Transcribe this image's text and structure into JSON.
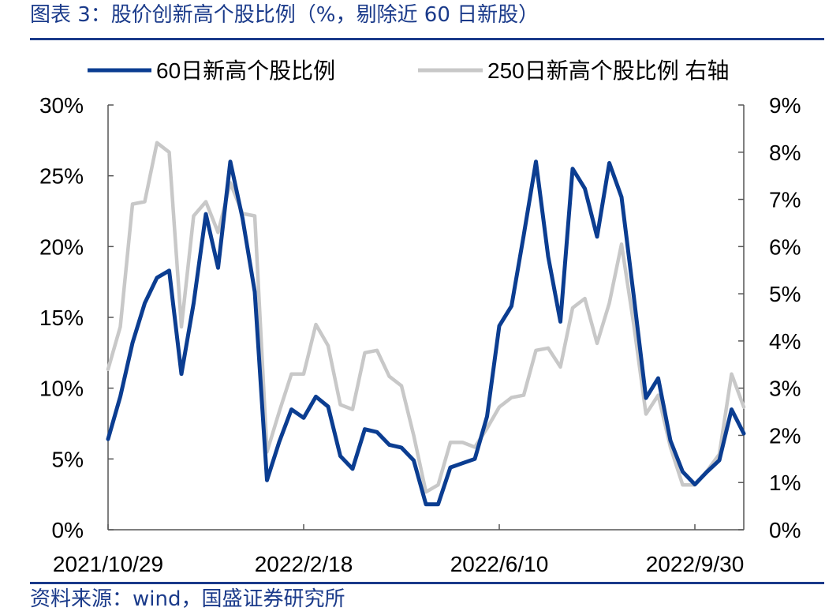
{
  "header": {
    "title": "图表 3：股价创新高个股比例（%，剔除近 60 日新股）"
  },
  "footer": {
    "source": "资料来源：wind，国盛证券研究所"
  },
  "colors": {
    "series_60d": "#0b3d91",
    "series_250d": "#c8c8c8",
    "frame": "#1a3a8a"
  },
  "chart_data": {
    "type": "line",
    "title": "",
    "xlabel": "",
    "ylabel": "",
    "x_tick_labels": [
      "2021/10/29",
      "2022/2/18",
      "2022/6/10",
      "2022/9/30"
    ],
    "x_tick_index": [
      0,
      16,
      32,
      48
    ],
    "y_left": {
      "lim": [
        0,
        30
      ],
      "ticks": [
        0,
        5,
        10,
        15,
        20,
        25,
        30
      ],
      "tick_labels": [
        "0%",
        "5%",
        "10%",
        "15%",
        "20%",
        "25%",
        "30%"
      ]
    },
    "y_right": {
      "lim": [
        0,
        9
      ],
      "ticks": [
        0,
        1,
        2,
        3,
        4,
        5,
        6,
        7,
        8,
        9
      ],
      "tick_labels": [
        "0%",
        "1%",
        "2%",
        "3%",
        "4%",
        "5%",
        "6%",
        "7%",
        "8%",
        "9%"
      ]
    },
    "legend": {
      "position": "top"
    },
    "grid": false,
    "series": [
      {
        "name": "60日新高个股比例",
        "axis": "left",
        "values": [
          6.4,
          9.4,
          13.2,
          16.0,
          17.8,
          18.3,
          11.0,
          16.0,
          22.3,
          18.5,
          26.0,
          22.0,
          16.8,
          3.5,
          6.2,
          8.5,
          7.9,
          9.4,
          8.7,
          5.2,
          4.3,
          7.1,
          6.9,
          6.0,
          5.8,
          4.9,
          1.8,
          1.8,
          4.4,
          4.7,
          5.0,
          8.0,
          14.4,
          15.8,
          20.8,
          26.0,
          19.3,
          14.7,
          25.5,
          24.1,
          20.7,
          25.9,
          23.5,
          16.5,
          9.3,
          10.7,
          6.3,
          4.1,
          3.2,
          4.1,
          4.9,
          8.5,
          6.8
        ]
      },
      {
        "name": "250日新高个股比例 右轴",
        "axis": "right",
        "values": [
          3.4,
          4.3,
          6.9,
          6.95,
          8.2,
          8.0,
          4.3,
          6.65,
          6.95,
          6.3,
          7.35,
          6.7,
          6.65,
          1.65,
          2.5,
          3.3,
          3.3,
          4.35,
          3.9,
          2.65,
          2.55,
          3.75,
          3.8,
          3.25,
          3.05,
          2.0,
          0.8,
          0.95,
          1.85,
          1.85,
          1.75,
          2.15,
          2.6,
          2.8,
          2.85,
          3.8,
          3.85,
          3.45,
          4.7,
          4.9,
          3.95,
          4.8,
          6.05,
          4.35,
          2.45,
          2.85,
          1.75,
          0.95,
          0.95,
          1.25,
          1.6,
          3.3,
          2.6
        ]
      }
    ]
  }
}
